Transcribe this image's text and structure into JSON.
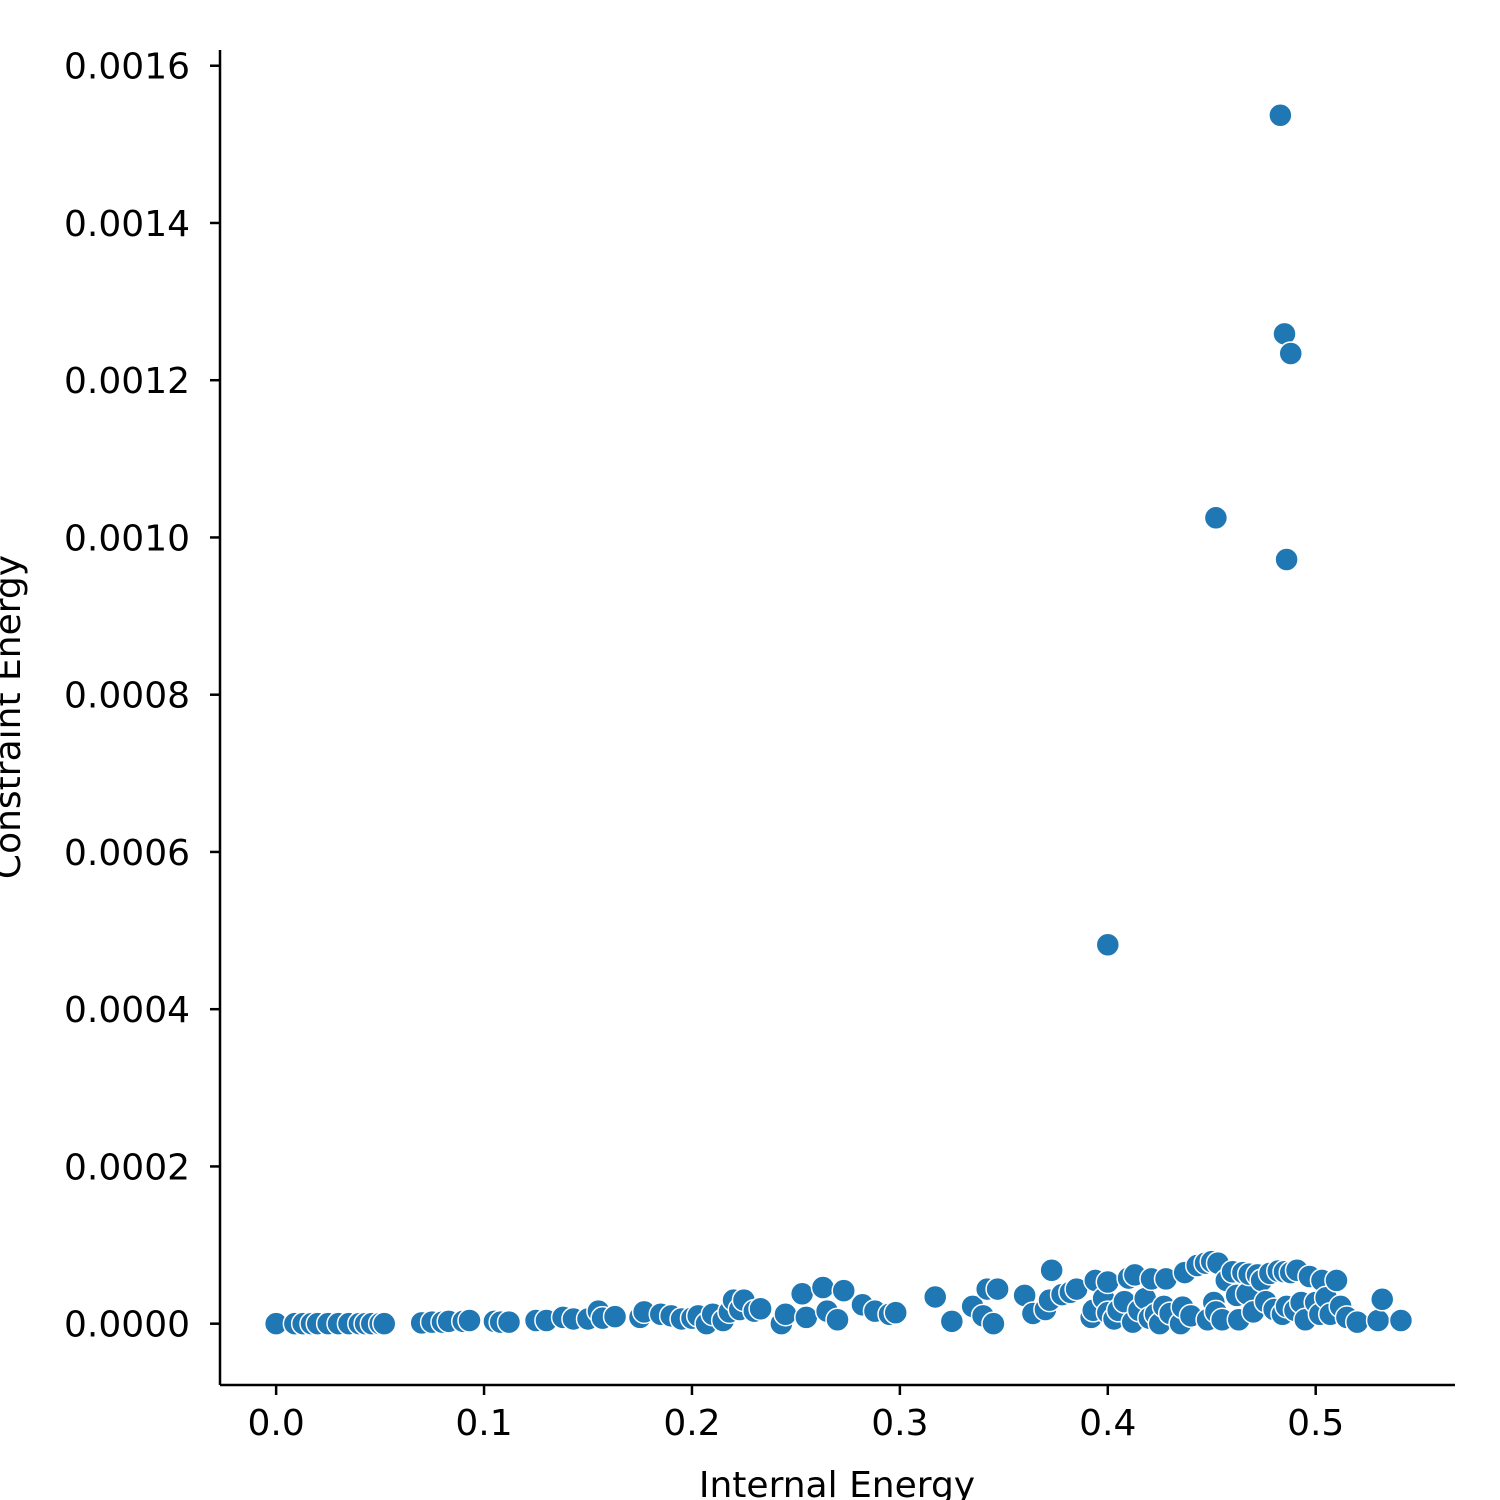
{
  "chart_data": {
    "type": "scatter",
    "xlabel": "Internal Energy",
    "ylabel": "Constraint Energy",
    "xlim": [
      -0.027,
      0.567
    ],
    "ylim": [
      -7.8e-05,
      0.00162
    ],
    "x_ticks": [
      0.0,
      0.1,
      0.2,
      0.3,
      0.4,
      0.5
    ],
    "x_tick_labels": [
      "0.0",
      "0.1",
      "0.2",
      "0.3",
      "0.4",
      "0.5"
    ],
    "y_ticks": [
      0.0,
      0.0002,
      0.0004,
      0.0006,
      0.0008,
      0.001,
      0.0012,
      0.0014,
      0.0016
    ],
    "y_tick_labels": [
      "0.0000",
      "0.0002",
      "0.0004",
      "0.0006",
      "0.0008",
      "0.0010",
      "0.0012",
      "0.0014",
      "0.0016"
    ],
    "grid": false,
    "marker_color": "#1f77b4",
    "marker_edge_color": "#ffffff",
    "series": [
      {
        "points": [
          [
            0.0,
            0.0
          ],
          [
            0.009,
            0.0
          ],
          [
            0.013,
            0.0
          ],
          [
            0.017,
            0.0
          ],
          [
            0.02,
            0.0
          ],
          [
            0.025,
            0.0
          ],
          [
            0.03,
            0.0
          ],
          [
            0.035,
            0.0
          ],
          [
            0.04,
            0.0
          ],
          [
            0.043,
            0.0
          ],
          [
            0.046,
            0.0
          ],
          [
            0.05,
            0.0
          ],
          [
            0.052,
            0.0
          ],
          [
            0.07,
            1e-06
          ],
          [
            0.075,
            2e-06
          ],
          [
            0.08,
            2e-06
          ],
          [
            0.083,
            3e-06
          ],
          [
            0.09,
            3e-06
          ],
          [
            0.093,
            4e-06
          ],
          [
            0.105,
            3e-06
          ],
          [
            0.108,
            2e-06
          ],
          [
            0.112,
            2e-06
          ],
          [
            0.125,
            4e-06
          ],
          [
            0.13,
            4e-06
          ],
          [
            0.138,
            8e-06
          ],
          [
            0.143,
            6e-06
          ],
          [
            0.15,
            6e-06
          ],
          [
            0.155,
            1.6e-05
          ],
          [
            0.157,
            7e-06
          ],
          [
            0.163,
            9e-06
          ],
          [
            0.175,
            8e-06
          ],
          [
            0.177,
            1.5e-05
          ],
          [
            0.185,
            1.2e-05
          ],
          [
            0.19,
            1e-05
          ],
          [
            0.195,
            6e-06
          ],
          [
            0.2,
            7e-06
          ],
          [
            0.203,
            1e-05
          ],
          [
            0.207,
            0.0
          ],
          [
            0.21,
            1.2e-05
          ],
          [
            0.215,
            4e-06
          ],
          [
            0.218,
            1.5e-05
          ],
          [
            0.22,
            3e-05
          ],
          [
            0.223,
            1.8e-05
          ],
          [
            0.225,
            3e-05
          ],
          [
            0.23,
            1.6e-05
          ],
          [
            0.233,
            1.9e-05
          ],
          [
            0.243,
            0.0
          ],
          [
            0.245,
            1.2e-05
          ],
          [
            0.253,
            3.8e-05
          ],
          [
            0.255,
            8e-06
          ],
          [
            0.263,
            4.6e-05
          ],
          [
            0.265,
            1.6e-05
          ],
          [
            0.27,
            5e-06
          ],
          [
            0.273,
            4.2e-05
          ],
          [
            0.282,
            2.4e-05
          ],
          [
            0.288,
            1.6e-05
          ],
          [
            0.295,
            1.2e-05
          ],
          [
            0.298,
            1.4e-05
          ],
          [
            0.317,
            3.4e-05
          ],
          [
            0.325,
            3e-06
          ],
          [
            0.335,
            2.2e-05
          ],
          [
            0.34,
            1e-05
          ],
          [
            0.342,
            4.4e-05
          ],
          [
            0.345,
            0.0
          ],
          [
            0.347,
            4.4e-05
          ],
          [
            0.36,
            3.6e-05
          ],
          [
            0.364,
            1.3e-05
          ],
          [
            0.37,
            1.8e-05
          ],
          [
            0.372,
            3e-05
          ],
          [
            0.373,
            6.8e-05
          ],
          [
            0.378,
            3.7e-05
          ],
          [
            0.382,
            4e-05
          ],
          [
            0.385,
            4.4e-05
          ],
          [
            0.392,
            8e-06
          ],
          [
            0.393,
            1.7e-05
          ],
          [
            0.394,
            5.5e-05
          ],
          [
            0.398,
            3.2e-05
          ],
          [
            0.4,
            1.4e-05
          ],
          [
            0.4,
            5.3e-05
          ],
          [
            0.403,
            6e-06
          ],
          [
            0.405,
            1.7e-05
          ],
          [
            0.408,
            2.8e-05
          ],
          [
            0.41,
            5.8e-05
          ],
          [
            0.412,
            2e-06
          ],
          [
            0.413,
            6.2e-05
          ],
          [
            0.415,
            1.7e-05
          ],
          [
            0.418,
            3.2e-05
          ],
          [
            0.42,
            7e-06
          ],
          [
            0.421,
            5.7e-05
          ],
          [
            0.423,
            1.2e-05
          ],
          [
            0.425,
            0.0
          ],
          [
            0.427,
            2.2e-05
          ],
          [
            0.428,
            5.7e-05
          ],
          [
            0.43,
            1.3e-05
          ],
          [
            0.435,
            0.0
          ],
          [
            0.436,
            2.1e-05
          ],
          [
            0.437,
            6.5e-05
          ],
          [
            0.44,
            1e-05
          ],
          [
            0.443,
            7.4e-05
          ],
          [
            0.447,
            7.7e-05
          ],
          [
            0.448,
            5e-06
          ],
          [
            0.45,
            7.9e-05
          ],
          [
            0.451,
            2.7e-05
          ],
          [
            0.452,
            1.5e-05
          ],
          [
            0.453,
            7.7e-05
          ],
          [
            0.455,
            5e-06
          ],
          [
            0.457,
            5.5e-05
          ],
          [
            0.46,
            6.6e-05
          ],
          [
            0.462,
            3.6e-05
          ],
          [
            0.463,
            5e-06
          ],
          [
            0.465,
            6.5e-05
          ],
          [
            0.467,
            3.8e-05
          ],
          [
            0.468,
            6.3e-05
          ],
          [
            0.47,
            1.5e-05
          ],
          [
            0.472,
            6.2e-05
          ],
          [
            0.474,
            5.5e-05
          ],
          [
            0.476,
            2.8e-05
          ],
          [
            0.478,
            6.4e-05
          ],
          [
            0.48,
            1.8e-05
          ],
          [
            0.482,
            6.7e-05
          ],
          [
            0.484,
            1.2e-05
          ],
          [
            0.485,
            6.6e-05
          ],
          [
            0.486,
            2.2e-05
          ],
          [
            0.488,
            6.5e-05
          ],
          [
            0.49,
            1.7e-05
          ],
          [
            0.491,
            6.8e-05
          ],
          [
            0.493,
            2.7e-05
          ],
          [
            0.495,
            5e-06
          ],
          [
            0.497,
            6e-05
          ],
          [
            0.5,
            2.7e-05
          ],
          [
            0.502,
            1.2e-05
          ],
          [
            0.503,
            5.5e-05
          ],
          [
            0.505,
            3.3e-05
          ],
          [
            0.507,
            1.2e-05
          ],
          [
            0.51,
            5.5e-05
          ],
          [
            0.512,
            2.2e-05
          ],
          [
            0.515,
            8e-06
          ],
          [
            0.52,
            2e-06
          ],
          [
            0.53,
            4e-06
          ],
          [
            0.532,
            3.1e-05
          ],
          [
            0.541,
            4e-06
          ],
          [
            0.4,
            0.000482
          ],
          [
            0.452,
            0.001025
          ],
          [
            0.486,
            0.000972
          ],
          [
            0.485,
            0.001259
          ],
          [
            0.488,
            0.001234
          ],
          [
            0.483,
            0.001537
          ]
        ]
      }
    ]
  }
}
